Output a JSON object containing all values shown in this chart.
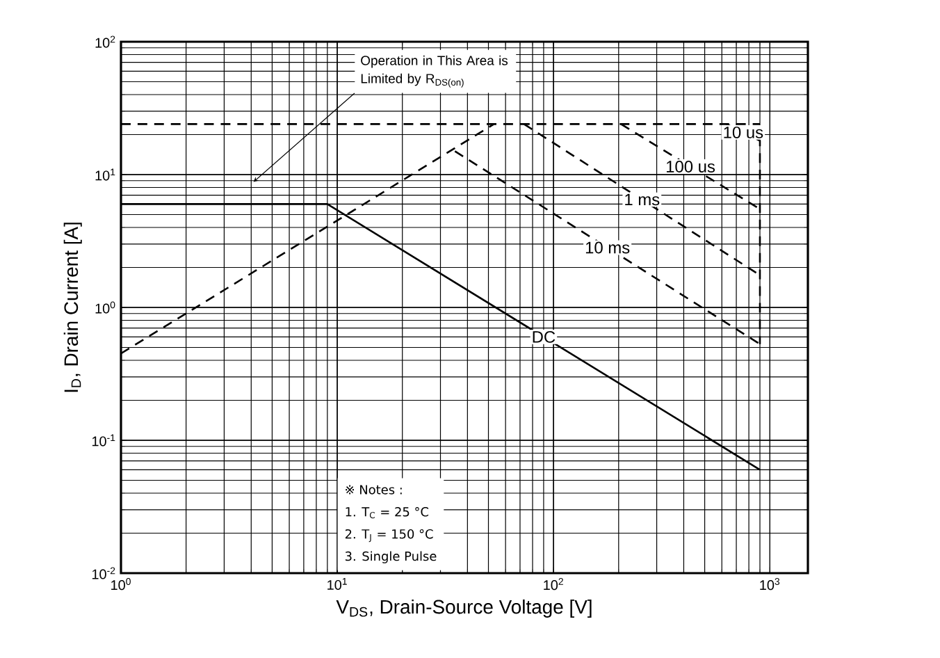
{
  "chart_data": {
    "type": "line",
    "xlabel": "V$_{DS}$, Drain-Source Voltage [V]",
    "ylabel": "I$_{D}$, Drain Current [A]",
    "log": "xy",
    "grid": true,
    "marker": "none",
    "xlim": [
      1,
      1500
    ],
    "ylim": [
      0.01,
      100
    ],
    "xticks": [
      {
        "value": 1,
        "label": "10$^{0}$"
      },
      {
        "value": 10,
        "label": "10$^{1}$"
      },
      {
        "value": 100,
        "label": "10$^{2}$"
      },
      {
        "value": 1000,
        "label": "10$^{3}$"
      }
    ],
    "yticks": [
      {
        "value": 0.01,
        "label": "10$^{-2}$"
      },
      {
        "value": 0.1,
        "label": "10$^{-1}$"
      },
      {
        "value": 1,
        "label": "10$^{0}$"
      },
      {
        "value": 10,
        "label": "10$^{1}$"
      },
      {
        "value": 100,
        "label": "10$^{2}$"
      }
    ],
    "annotations": [
      {
        "text": "Operation in This Area is Limited by R$_{DS(on)}$",
        "x": 4.1,
        "y": 8.8
      },
      "※ Notes :",
      "1. T$_{C}$ = 25 °C",
      "2. T$_{J}$ = 150 °C",
      "3. Single Pulse"
    ],
    "series": [
      {
        "color": "#000000",
        "line_style": "dashed",
        "x": [
          1,
          900
        ],
        "values": [
          24,
          24
        ]
      },
      {
        "color": "#000000",
        "line_style": "dashed",
        "x": [
          1,
          53
        ],
        "values": [
          0.45,
          24
        ]
      },
      {
        "name": "10 us",
        "color": "#000000",
        "line_style": "dashed",
        "x": [
          630,
          900,
          900
        ],
        "values": [
          24,
          18,
          0.53
        ]
      },
      {
        "name": "100 us",
        "color": "#000000",
        "line_style": "dashed",
        "x": [
          205,
          900
        ],
        "values": [
          24,
          5.5
        ]
      },
      {
        "name": "1 ms",
        "color": "#000000",
        "line_style": "dashed",
        "x": [
          73,
          900
        ],
        "values": [
          24,
          1.75
        ]
      },
      {
        "name": "10 ms",
        "color": "#000000",
        "line_style": "dashed",
        "x": [
          35,
          900
        ],
        "values": [
          15,
          0.53
        ]
      },
      {
        "name": "DC",
        "color": "#000000",
        "line_style": "solid",
        "x": [
          1,
          9,
          900
        ],
        "values": [
          6,
          6,
          0.06
        ]
      }
    ]
  }
}
